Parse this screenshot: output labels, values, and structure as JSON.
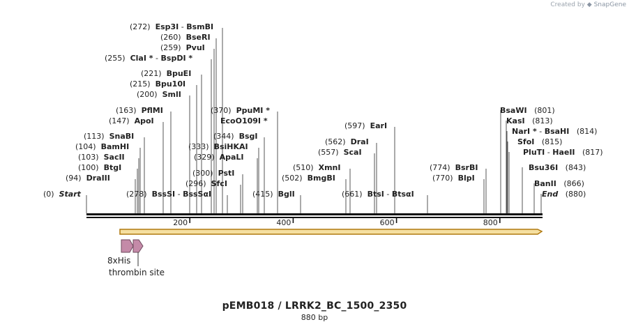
{
  "credit": {
    "prefix": "Created by",
    "brand": "SnapGene"
  },
  "title": "pEMB018 / LRRK2_BC_1500_2350",
  "subtitle": "880 bp",
  "ruler": {
    "ticks": [
      {
        "label": "200",
        "bp": 200
      },
      {
        "label": "400",
        "bp": 400
      },
      {
        "label": "600",
        "bp": 600
      },
      {
        "label": "800",
        "bp": 800
      }
    ]
  },
  "features": {
    "arrows": [
      {
        "name": "8xHis"
      },
      {
        "name": "thrombin site"
      }
    ]
  },
  "colors": {
    "orf": "#f5dfa0",
    "orf_stroke": "#b07a10",
    "feature": "#c48aa8",
    "feature_stroke": "#6e4a5d"
  },
  "sites": [
    {
      "id": "start",
      "pos": "(0)",
      "names": [
        "Start"
      ],
      "italic": true,
      "bp": 0
    },
    {
      "id": "draiii",
      "pos": "(94)",
      "names": [
        "DraIII"
      ],
      "bp": 94
    },
    {
      "id": "btgi",
      "pos": "(100)",
      "names": [
        "BtgI"
      ],
      "bp": 100
    },
    {
      "id": "sacii",
      "pos": "(103)",
      "names": [
        "SacII"
      ],
      "bp": 103
    },
    {
      "id": "bamhi",
      "pos": "(104)",
      "names": [
        "BamHI"
      ],
      "bp": 104
    },
    {
      "id": "snabi",
      "pos": "(113)",
      "names": [
        "SnaBI"
      ],
      "bp": 113
    },
    {
      "id": "apoi",
      "pos": "(147)",
      "names": [
        "ApoI"
      ],
      "bp": 147
    },
    {
      "id": "pflmi",
      "pos": "(163)",
      "names": [
        "PflMI"
      ],
      "bp": 163
    },
    {
      "id": "smli",
      "pos": "(200)",
      "names": [
        "SmlI"
      ],
      "bp": 200
    },
    {
      "id": "bpu10i",
      "pos": "(215)",
      "names": [
        "Bpu10I"
      ],
      "bp": 215
    },
    {
      "id": "bpuei",
      "pos": "(221)",
      "names": [
        "BpuEI"
      ],
      "bp": 221
    },
    {
      "id": "clai",
      "pos": "(255)",
      "names": [
        "ClaI *",
        "BspDI *"
      ],
      "bp": 255
    },
    {
      "id": "pvui",
      "pos": "(259)",
      "names": [
        "PvuI"
      ],
      "bp": 259
    },
    {
      "id": "beseri",
      "pos": "(260)",
      "names": [
        "BseRI"
      ],
      "bp": 260
    },
    {
      "id": "esp3i",
      "pos": "(272)",
      "names": [
        "Esp3I",
        "BsmBI"
      ],
      "bp": 272
    },
    {
      "id": "bsssi",
      "pos": "(278)",
      "names": [
        "BssSI",
        "BssSαI"
      ],
      "bp": 278
    },
    {
      "id": "sfci",
      "pos": "(296)",
      "names": [
        "SfcI"
      ],
      "bp": 296
    },
    {
      "id": "psti",
      "pos": "(300)",
      "names": [
        "PstI"
      ],
      "bp": 300
    },
    {
      "id": "apali",
      "pos": "(329)",
      "names": [
        "ApaLI"
      ],
      "bp": 329
    },
    {
      "id": "bsihkai",
      "pos": "(333)",
      "names": [
        "BsiHKAI"
      ],
      "bp": 333
    },
    {
      "id": "bsgi",
      "pos": "(344)",
      "names": [
        "BsgI"
      ],
      "bp": 344
    },
    {
      "id": "ecoo109i",
      "pos": "",
      "names": [
        "EcoO109I *"
      ],
      "bp": 370
    },
    {
      "id": "ppumi",
      "pos": "(370)",
      "names": [
        "PpuMI *"
      ],
      "bp": 370
    },
    {
      "id": "bgli",
      "pos": "(415)",
      "names": [
        "BglI"
      ],
      "bp": 415
    },
    {
      "id": "bmgbi",
      "pos": "(502)",
      "names": [
        "BmgBI"
      ],
      "bp": 502
    },
    {
      "id": "xmni",
      "pos": "(510)",
      "names": [
        "XmnI"
      ],
      "bp": 510
    },
    {
      "id": "scai",
      "pos": "(557)",
      "names": [
        "ScaI"
      ],
      "bp": 557
    },
    {
      "id": "drai",
      "pos": "(562)",
      "names": [
        "DraI"
      ],
      "bp": 562
    },
    {
      "id": "eari",
      "pos": "(597)",
      "names": [
        "EarI"
      ],
      "bp": 597
    },
    {
      "id": "btsi",
      "pos": "(661)",
      "names": [
        "BtsI",
        "BtsαI"
      ],
      "bp": 661
    },
    {
      "id": "blpi",
      "pos": "(770)",
      "names": [
        "BlpI"
      ],
      "bp": 770
    },
    {
      "id": "bsrbi",
      "pos": "(774)",
      "names": [
        "BsrBI"
      ],
      "bp": 774
    },
    {
      "id": "bsawi",
      "pos": "(801)",
      "names": [
        "BsaWI"
      ],
      "bp": 801
    },
    {
      "id": "kasi",
      "pos": "(813)",
      "names": [
        "KasI"
      ],
      "bp": 813
    },
    {
      "id": "nari",
      "pos": "(814)",
      "names": [
        "NarI *",
        "BsaHI"
      ],
      "bp": 814
    },
    {
      "id": "sfoi",
      "pos": "(815)",
      "names": [
        "SfoI"
      ],
      "bp": 815
    },
    {
      "id": "pluti",
      "pos": "(817)",
      "names": [
        "PluTI",
        "HaeII"
      ],
      "bp": 817
    },
    {
      "id": "bsu36i",
      "pos": "(843)",
      "names": [
        "Bsu36I"
      ],
      "bp": 843
    },
    {
      "id": "banii",
      "pos": "(866)",
      "names": [
        "BanII"
      ],
      "bp": 866
    },
    {
      "id": "end",
      "pos": "(880)",
      "names": [
        "End"
      ],
      "italic": true,
      "bp": 880
    }
  ]
}
